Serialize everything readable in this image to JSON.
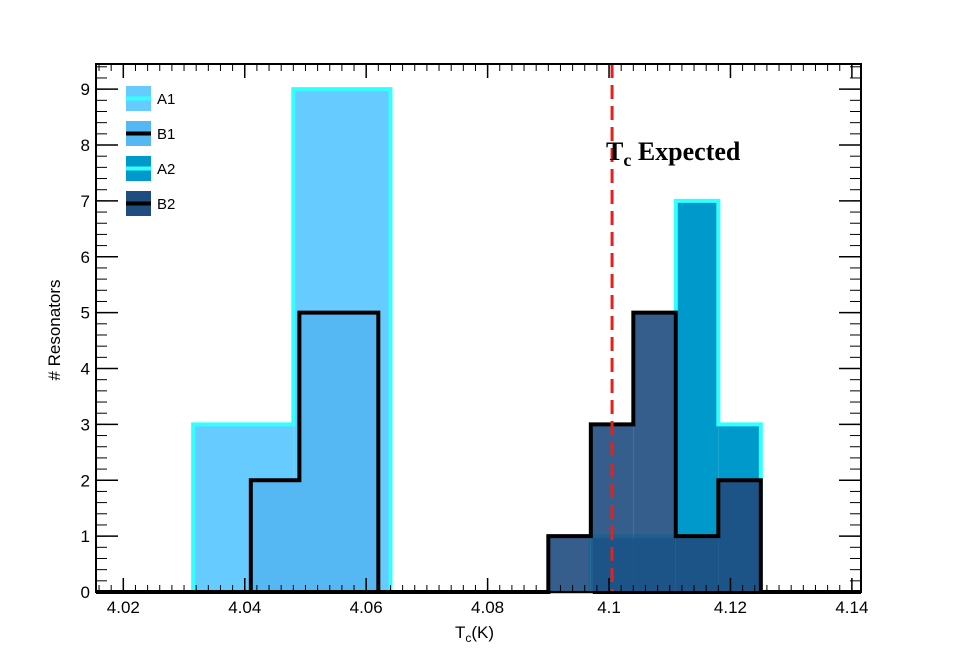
{
  "chart_data": {
    "type": "bar",
    "title": "",
    "xlabel": {
      "main": "T",
      "sub": "c",
      "rest": "(K)"
    },
    "ylabel": "# Resonators",
    "xlim": [
      4.0155,
      4.1415
    ],
    "ylim": [
      0,
      9.45
    ],
    "x_ticks": [
      "4.02",
      "4.04",
      "4.06",
      "4.08",
      "4.1",
      "4.12",
      "4.14"
    ],
    "y_ticks": [
      "0",
      "1",
      "2",
      "3",
      "4",
      "5",
      "6",
      "7",
      "8",
      "9"
    ],
    "legend_position": "top-left",
    "series": [
      {
        "name": "A1",
        "fill": "#66ccff",
        "edge": "#33ffff",
        "bins": [
          {
            "x0": 4.0155,
            "x1": 4.0315,
            "y": 0
          },
          {
            "x0": 4.0315,
            "x1": 4.048,
            "y": 3
          },
          {
            "x0": 4.048,
            "x1": 4.064,
            "y": 9
          },
          {
            "x0": 4.064,
            "x1": 4.1415,
            "y": 0
          }
        ]
      },
      {
        "name": "B1",
        "fill": "#55b8f2",
        "edge": "#000000",
        "bins": [
          {
            "x0": 4.0155,
            "x1": 4.041,
            "y": 0
          },
          {
            "x0": 4.041,
            "x1": 4.049,
            "y": 2
          },
          {
            "x0": 4.049,
            "x1": 4.062,
            "y": 5
          },
          {
            "x0": 4.062,
            "x1": 4.1415,
            "y": 0
          }
        ]
      },
      {
        "name": "A2",
        "fill": "#0099cc",
        "edge": "#33ffff",
        "bins": [
          {
            "x0": 4.0155,
            "x1": 4.097,
            "y": 0
          },
          {
            "x0": 4.097,
            "x1": 4.111,
            "y": 1
          },
          {
            "x0": 4.111,
            "x1": 4.118,
            "y": 7
          },
          {
            "x0": 4.118,
            "x1": 4.125,
            "y": 3
          },
          {
            "x0": 4.125,
            "x1": 4.1415,
            "y": 0
          }
        ]
      },
      {
        "name": "B2",
        "fill": "#1f4d80",
        "fill_opacity": 0.9,
        "edge": "#000000",
        "bins": [
          {
            "x0": 4.0155,
            "x1": 4.09,
            "y": 0
          },
          {
            "x0": 4.09,
            "x1": 4.097,
            "y": 1
          },
          {
            "x0": 4.097,
            "x1": 4.104,
            "y": 3
          },
          {
            "x0": 4.104,
            "x1": 4.111,
            "y": 5
          },
          {
            "x0": 4.111,
            "x1": 4.118,
            "y": 1
          },
          {
            "x0": 4.118,
            "x1": 4.125,
            "y": 2
          },
          {
            "x0": 4.125,
            "x1": 4.1415,
            "y": 0
          }
        ]
      }
    ],
    "reference_line": {
      "x": 4.1005,
      "color": "#e8201c",
      "style": "dashed"
    },
    "annotation": {
      "main": "T",
      "sub": "c",
      "rest": " Expected"
    }
  }
}
